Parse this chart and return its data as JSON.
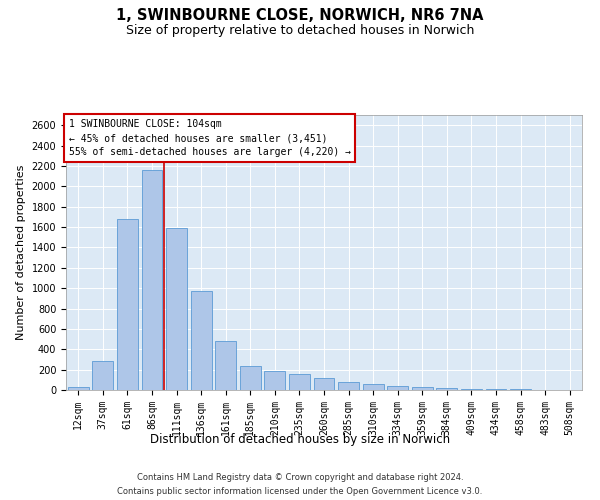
{
  "title": "1, SWINBOURNE CLOSE, NORWICH, NR6 7NA",
  "subtitle": "Size of property relative to detached houses in Norwich",
  "xlabel": "Distribution of detached houses by size in Norwich",
  "ylabel": "Number of detached properties",
  "categories": [
    "12sqm",
    "37sqm",
    "61sqm",
    "86sqm",
    "111sqm",
    "136sqm",
    "161sqm",
    "185sqm",
    "210sqm",
    "235sqm",
    "260sqm",
    "285sqm",
    "310sqm",
    "334sqm",
    "359sqm",
    "384sqm",
    "409sqm",
    "434sqm",
    "458sqm",
    "483sqm",
    "508sqm"
  ],
  "values": [
    30,
    280,
    1680,
    2160,
    1590,
    970,
    480,
    240,
    190,
    160,
    115,
    80,
    60,
    40,
    25,
    15,
    10,
    8,
    5,
    3,
    2
  ],
  "bar_color": "#aec6e8",
  "bar_edge_color": "#5b9bd5",
  "vline_color": "#cc0000",
  "annotation_line1": "1 SWINBOURNE CLOSE: 104sqm",
  "annotation_line2": "← 45% of detached houses are smaller (3,451)",
  "annotation_line3": "55% of semi-detached houses are larger (4,220) →",
  "annotation_box_color": "#ffffff",
  "annotation_box_edge": "#cc0000",
  "ylim": [
    0,
    2700
  ],
  "yticks": [
    0,
    200,
    400,
    600,
    800,
    1000,
    1200,
    1400,
    1600,
    1800,
    2000,
    2200,
    2400,
    2600
  ],
  "plot_bg_color": "#dce9f5",
  "footer_line1": "Contains HM Land Registry data © Crown copyright and database right 2024.",
  "footer_line2": "Contains public sector information licensed under the Open Government Licence v3.0.",
  "title_fontsize": 10.5,
  "subtitle_fontsize": 9,
  "tick_fontsize": 7,
  "ylabel_fontsize": 8,
  "xlabel_fontsize": 8.5,
  "annot_fontsize": 7,
  "footer_fontsize": 6
}
